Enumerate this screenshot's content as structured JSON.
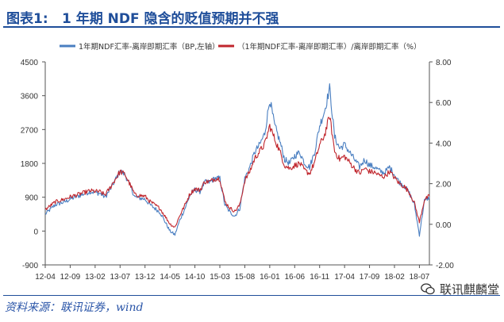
{
  "header": {
    "figure_label": "图表1:",
    "title": "1 年期 NDF 隐含的贬值预期并不强"
  },
  "footer": {
    "source": "资料来源：联讯证券，wind",
    "watermark": "联讯麒麟堂"
  },
  "colors": {
    "series_left": "#4a7fc1",
    "series_right": "#c0262d",
    "title": "#1f4e9a"
  },
  "chart_data": {
    "type": "line",
    "title": "",
    "x_ticks": [
      "12-04",
      "12-09",
      "13-02",
      "13-07",
      "13-12",
      "14-05",
      "14-10",
      "15-03",
      "15-08",
      "16-01",
      "16-06",
      "16-11",
      "17-04",
      "17-09",
      "18-02",
      "18-07"
    ],
    "x_start": "2012-04",
    "x_end": "2018-09",
    "left_axis": {
      "ticks": [
        "4500",
        "3600",
        "2700",
        "1800",
        "900",
        "0",
        "-900"
      ],
      "ylim": [
        -900,
        4500
      ]
    },
    "right_axis": {
      "ticks": [
        "8.00",
        "6.00",
        "4.00",
        "2.00",
        "0.00",
        "-2.00"
      ],
      "ylim": [
        -2,
        8
      ]
    },
    "grid": false,
    "legend_position": "top",
    "series": [
      {
        "name": "1年期NDF汇率-离岸即期汇率（BP,左轴）",
        "axis": "left",
        "points": [
          [
            "2012-04",
            450
          ],
          [
            "2012-06",
            700
          ],
          [
            "2012-08",
            780
          ],
          [
            "2012-09",
            850
          ],
          [
            "2012-11",
            950
          ],
          [
            "2013-01",
            1050
          ],
          [
            "2013-03",
            1000
          ],
          [
            "2013-04",
            900
          ],
          [
            "2013-05",
            1100
          ],
          [
            "2013-07",
            1600
          ],
          [
            "2013-08",
            1500
          ],
          [
            "2013-09",
            1200
          ],
          [
            "2013-10",
            900
          ],
          [
            "2013-12",
            850
          ],
          [
            "2014-01",
            700
          ],
          [
            "2014-02",
            600
          ],
          [
            "2014-03",
            500
          ],
          [
            "2014-05",
            0
          ],
          [
            "2014-06",
            -100
          ],
          [
            "2014-07",
            300
          ],
          [
            "2014-08",
            600
          ],
          [
            "2014-09",
            950
          ],
          [
            "2014-10",
            1100
          ],
          [
            "2014-11",
            1050
          ],
          [
            "2014-12",
            1300
          ],
          [
            "2015-01",
            1300
          ],
          [
            "2015-02",
            1400
          ],
          [
            "2015-03",
            1400
          ],
          [
            "2015-04",
            700
          ],
          [
            "2015-05",
            500
          ],
          [
            "2015-06",
            400
          ],
          [
            "2015-07",
            600
          ],
          [
            "2015-08",
            1400
          ],
          [
            "2015-09",
            1700
          ],
          [
            "2015-10",
            2100
          ],
          [
            "2015-11",
            2300
          ],
          [
            "2015-12",
            2600
          ],
          [
            "2016-01",
            3500
          ],
          [
            "2016-02",
            2800
          ],
          [
            "2016-03",
            2400
          ],
          [
            "2016-04",
            1900
          ],
          [
            "2016-05",
            1800
          ],
          [
            "2016-06",
            2000
          ],
          [
            "2016-07",
            2100
          ],
          [
            "2016-08",
            1800
          ],
          [
            "2016-09",
            1700
          ],
          [
            "2016-10",
            2100
          ],
          [
            "2016-11",
            2800
          ],
          [
            "2016-12",
            3200
          ],
          [
            "2017-01",
            3800
          ],
          [
            "2017-02",
            2500
          ],
          [
            "2017-03",
            2200
          ],
          [
            "2017-04",
            2300
          ],
          [
            "2017-05",
            2100
          ],
          [
            "2017-06",
            1900
          ],
          [
            "2017-07",
            1700
          ],
          [
            "2017-08",
            1900
          ],
          [
            "2017-09",
            1750
          ],
          [
            "2017-10",
            1700
          ],
          [
            "2017-11",
            1600
          ],
          [
            "2017-12",
            1550
          ],
          [
            "2018-01",
            1700
          ],
          [
            "2018-02",
            1500
          ],
          [
            "2018-03",
            1300
          ],
          [
            "2018-04",
            1200
          ],
          [
            "2018-05",
            1000
          ],
          [
            "2018-06",
            700
          ],
          [
            "2018-07",
            -100
          ],
          [
            "2018-08",
            800
          ],
          [
            "2018-09",
            900
          ]
        ]
      },
      {
        "name": "（1年期NDF汇率-离岸即期汇率）/离岸即期汇率（%）",
        "axis": "right",
        "points": [
          [
            "2012-04",
            0.72
          ],
          [
            "2012-06",
            1.1
          ],
          [
            "2012-08",
            1.25
          ],
          [
            "2012-09",
            1.35
          ],
          [
            "2012-11",
            1.5
          ],
          [
            "2013-01",
            1.65
          ],
          [
            "2013-03",
            1.6
          ],
          [
            "2013-04",
            1.45
          ],
          [
            "2013-05",
            1.8
          ],
          [
            "2013-07",
            2.6
          ],
          [
            "2013-08",
            2.45
          ],
          [
            "2013-09",
            1.95
          ],
          [
            "2013-10",
            1.45
          ],
          [
            "2013-12",
            1.38
          ],
          [
            "2014-01",
            1.12
          ],
          [
            "2014-02",
            0.95
          ],
          [
            "2014-03",
            0.78
          ],
          [
            "2014-05",
            0.02
          ],
          [
            "2014-06",
            -0.15
          ],
          [
            "2014-07",
            0.45
          ],
          [
            "2014-08",
            0.95
          ],
          [
            "2014-09",
            1.5
          ],
          [
            "2014-10",
            1.75
          ],
          [
            "2014-11",
            1.68
          ],
          [
            "2014-12",
            2.1
          ],
          [
            "2015-01",
            2.1
          ],
          [
            "2015-02",
            2.25
          ],
          [
            "2015-03",
            2.25
          ],
          [
            "2015-04",
            1.12
          ],
          [
            "2015-05",
            0.8
          ],
          [
            "2015-06",
            0.64
          ],
          [
            "2015-07",
            0.95
          ],
          [
            "2015-08",
            2.15
          ],
          [
            "2015-09",
            2.6
          ],
          [
            "2015-10",
            3.25
          ],
          [
            "2015-11",
            3.6
          ],
          [
            "2015-12",
            3.95
          ],
          [
            "2016-01",
            4.85
          ],
          [
            "2016-02",
            4.2
          ],
          [
            "2016-03",
            3.6
          ],
          [
            "2016-04",
            2.9
          ],
          [
            "2016-05",
            2.75
          ],
          [
            "2016-06",
            2.9
          ],
          [
            "2016-07",
            3.0
          ],
          [
            "2016-08",
            2.65
          ],
          [
            "2016-09",
            2.5
          ],
          [
            "2016-10",
            3.05
          ],
          [
            "2016-11",
            3.9
          ],
          [
            "2016-12",
            4.4
          ],
          [
            "2017-01",
            5.35
          ],
          [
            "2017-02",
            3.6
          ],
          [
            "2017-03",
            3.2
          ],
          [
            "2017-04",
            3.35
          ],
          [
            "2017-05",
            3.05
          ],
          [
            "2017-06",
            2.75
          ],
          [
            "2017-07",
            2.5
          ],
          [
            "2017-08",
            2.75
          ],
          [
            "2017-09",
            2.6
          ],
          [
            "2017-10",
            2.55
          ],
          [
            "2017-11",
            2.4
          ],
          [
            "2017-12",
            2.35
          ],
          [
            "2018-01",
            2.6
          ],
          [
            "2018-02",
            2.3
          ],
          [
            "2018-03",
            2.0
          ],
          [
            "2018-04",
            1.85
          ],
          [
            "2018-05",
            1.55
          ],
          [
            "2018-06",
            1.05
          ],
          [
            "2018-07",
            0.1
          ],
          [
            "2018-08",
            1.2
          ],
          [
            "2018-09",
            1.4
          ]
        ]
      }
    ]
  }
}
